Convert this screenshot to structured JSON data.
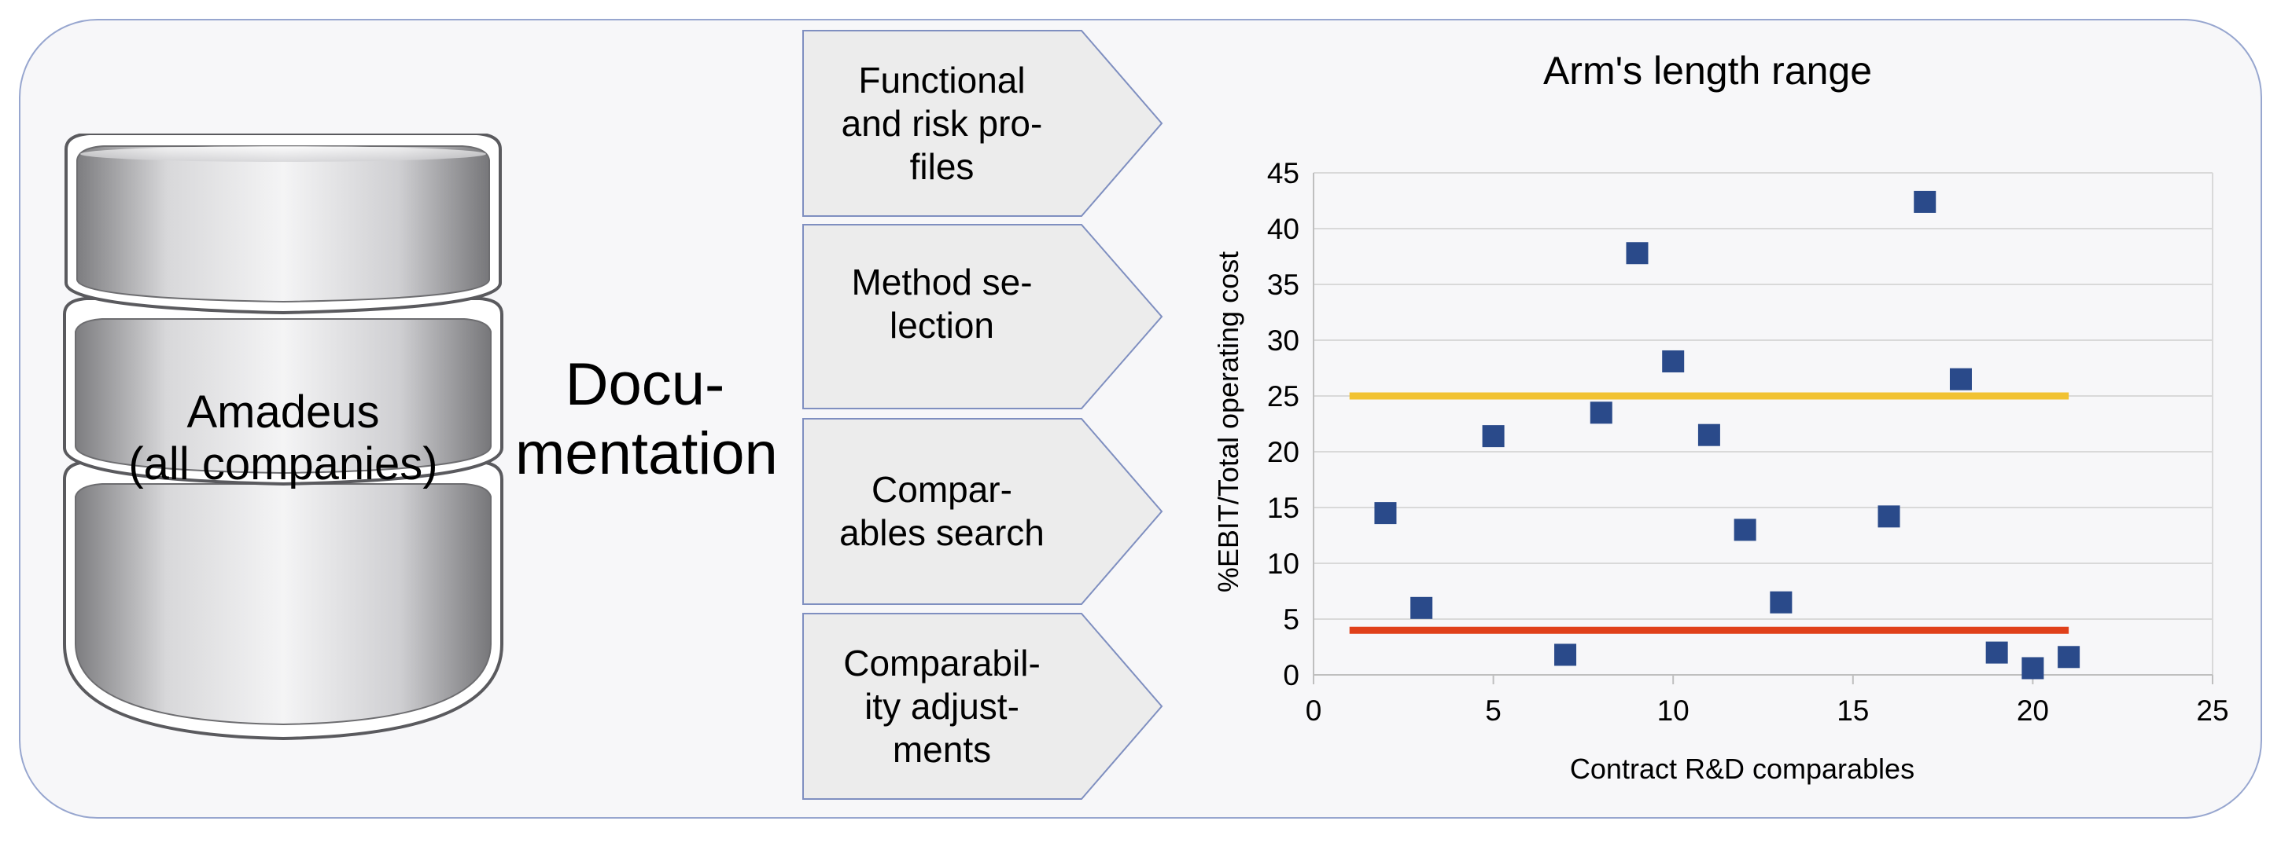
{
  "database": {
    "label_line1": "Amadeus",
    "label_line2": "(all companies)"
  },
  "documentation": {
    "line1": "Docu-",
    "line2": "mentation"
  },
  "steps": [
    {
      "line1": "Functional",
      "line2": "and risk pro-",
      "line3": "files"
    },
    {
      "line1": "Method se-",
      "line2": "lection",
      "line3": ""
    },
    {
      "line1": "Compar-",
      "line2": "ables search",
      "line3": ""
    },
    {
      "line1": "Comparabil-",
      "line2": "ity adjust-",
      "line3": "ments"
    }
  ],
  "colors": {
    "frame_border": "#97a6cf",
    "arrow_fill": "#ececec",
    "arrow_border": "#7f8fc0",
    "marker": "#2a4a8a",
    "upper_line": "#f1c232",
    "lower_line": "#e0401a",
    "grid": "#d9d9d9"
  },
  "chart_data": {
    "type": "scatter",
    "title": "Arm's length range",
    "xlabel": "Contract R&D comparables",
    "ylabel": "%EBIT/Total operating cost",
    "xlim": [
      0,
      25
    ],
    "ylim": [
      0,
      45
    ],
    "xticks": [
      0,
      5,
      10,
      15,
      20,
      25
    ],
    "yticks": [
      0,
      5,
      10,
      15,
      20,
      25,
      30,
      35,
      40,
      45
    ],
    "grid": "horizontal",
    "series": [
      {
        "marker": "square",
        "points": [
          [
            2,
            14.5
          ],
          [
            3,
            6.0
          ],
          [
            5,
            21.4
          ],
          [
            7,
            1.8
          ],
          [
            8,
            23.5
          ],
          [
            9,
            37.8
          ],
          [
            10,
            28.1
          ],
          [
            11,
            21.5
          ],
          [
            12,
            13.0
          ],
          [
            13,
            6.5
          ],
          [
            16,
            14.2
          ],
          [
            17,
            42.4
          ],
          [
            18,
            26.5
          ],
          [
            19,
            2.0
          ],
          [
            20,
            0.6
          ],
          [
            21,
            1.6
          ]
        ]
      }
    ],
    "reference_lines": [
      {
        "role": "upper-quartile",
        "y": 25.0,
        "x": [
          1,
          21
        ]
      },
      {
        "role": "lower-quartile",
        "y": 4.0,
        "x": [
          1,
          21
        ]
      }
    ]
  }
}
